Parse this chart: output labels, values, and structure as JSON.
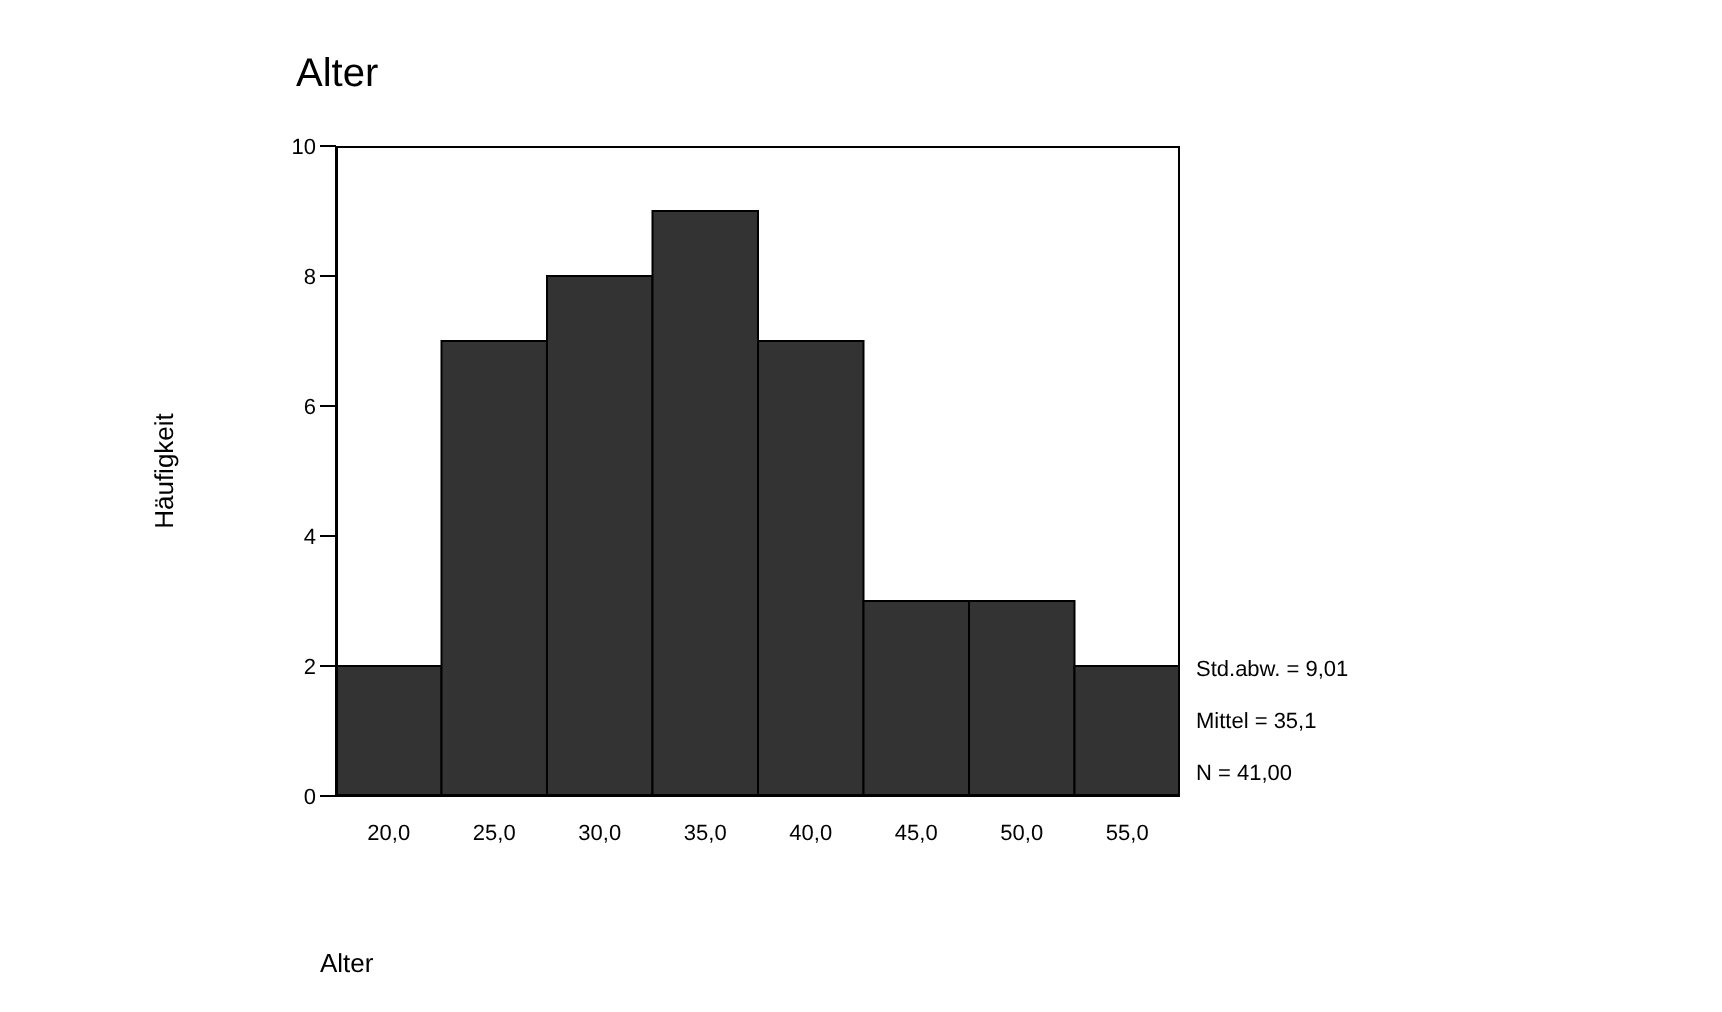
{
  "chart_data": {
    "type": "histogram",
    "title": "Alter",
    "xlabel": "Alter",
    "ylabel": "Häufigkeit",
    "bins": [
      17.5,
      22.5,
      27.5,
      32.5,
      37.5,
      42.5,
      47.5,
      52.5,
      57.5
    ],
    "values": [
      2,
      7,
      8,
      9,
      7,
      3,
      3,
      2
    ],
    "color": "#333333",
    "xlim": [
      17.5,
      57.5
    ],
    "xticks": [
      {
        "value": 20,
        "label": "20,0"
      },
      {
        "value": 25,
        "label": "25,0"
      },
      {
        "value": 30,
        "label": "30,0"
      },
      {
        "value": 35,
        "label": "35,0"
      },
      {
        "value": 40,
        "label": "40,0"
      },
      {
        "value": 45,
        "label": "45,0"
      },
      {
        "value": 50,
        "label": "50,0"
      },
      {
        "value": 55,
        "label": "55,0"
      }
    ],
    "ylim": [
      0,
      10
    ],
    "yticks": [
      0,
      2,
      4,
      6,
      8,
      10
    ],
    "annotations": [
      "Std.abw. = 9,01",
      "Mittel = 35,1",
      "N = 41,00"
    ]
  }
}
